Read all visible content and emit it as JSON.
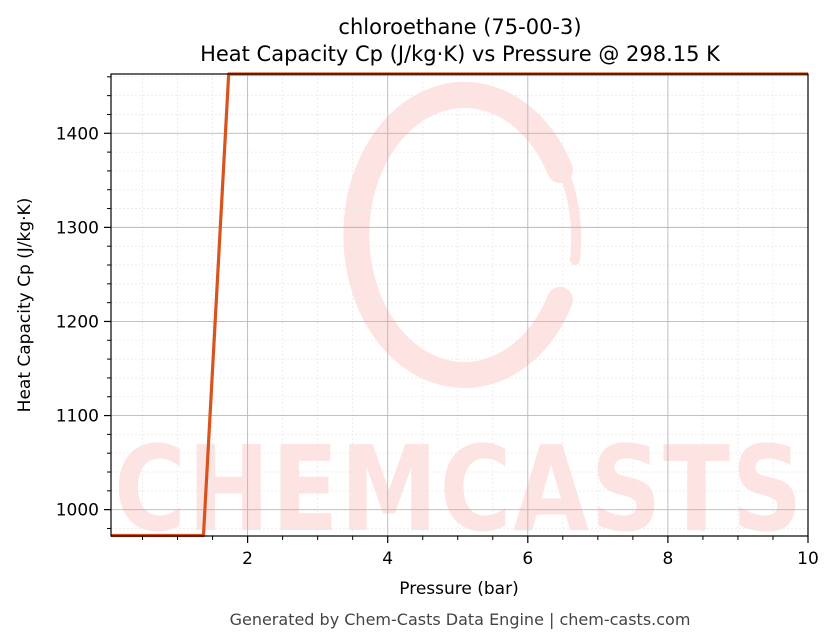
{
  "chart_data": {
    "type": "line",
    "title": "chloroethane (75-00-3)",
    "subtitle": "Heat Capacity Cp (J/kg·K) vs Pressure @ 298.15 K",
    "xlabel": "Pressure (bar)",
    "ylabel": "Heat Capacity Cp (J/kg·K)",
    "xlim": [
      0.05,
      10
    ],
    "ylim": [
      972,
      1463
    ],
    "x_ticks": [
      2,
      4,
      6,
      8,
      10
    ],
    "y_ticks": [
      1000,
      1100,
      1200,
      1300,
      1400
    ],
    "grid": true,
    "minor_grid": true,
    "legend": "none",
    "series": [
      {
        "color": "#d9531e",
        "x": [
          0.05,
          1.37,
          1.73,
          10
        ],
        "y": [
          972.5,
          972.5,
          1463,
          1463
        ]
      }
    ]
  },
  "watermark": {
    "text": "CHEMCASTS",
    "color": "#fde3e1"
  },
  "footer": "Generated by Chem-Casts Data Engine | chem-casts.com"
}
